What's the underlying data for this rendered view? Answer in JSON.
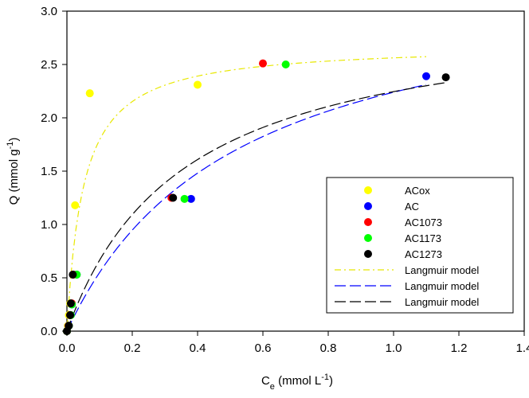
{
  "chart_data": {
    "type": "scatter",
    "xlabel": {
      "main": "C",
      "sub": "e",
      "rest": " (mmol L",
      "sup": "-1",
      "close": ")"
    },
    "ylabel": {
      "main": "Q (mmol g",
      "sup": "-1",
      "close": ")"
    },
    "xlim": [
      0,
      1.4
    ],
    "ylim": [
      0,
      3.0
    ],
    "xticks": [
      0.0,
      0.2,
      0.4,
      0.6,
      0.8,
      1.0,
      1.2,
      1.4
    ],
    "yticks": [
      0.0,
      0.5,
      1.0,
      1.5,
      2.0,
      2.5,
      3.0
    ],
    "xtick_labels": [
      "0.0",
      "0.2",
      "0.4",
      "0.6",
      "0.8",
      "1.0",
      "1.2",
      "1.4"
    ],
    "ytick_labels": [
      "0.0",
      "0.5",
      "1.0",
      "1.5",
      "2.0",
      "2.5",
      "3.0"
    ],
    "grid": false,
    "legend_position": "lower-right",
    "series": [
      {
        "name": "ACox",
        "kind": "scatter",
        "color": "#ffff00",
        "points": [
          [
            0.0,
            0.0
          ],
          [
            0.003,
            0.05
          ],
          [
            0.006,
            0.15
          ],
          [
            0.01,
            0.26
          ],
          [
            0.025,
            1.18
          ],
          [
            0.07,
            2.23
          ],
          [
            0.4,
            2.31
          ]
        ]
      },
      {
        "name": "AC",
        "kind": "scatter",
        "color": "#0000ff",
        "points": [
          [
            0.0,
            0.0
          ],
          [
            0.005,
            0.05
          ],
          [
            0.01,
            0.15
          ],
          [
            0.015,
            0.25
          ],
          [
            0.03,
            0.53
          ],
          [
            0.38,
            1.24
          ],
          [
            1.1,
            2.39
          ]
        ]
      },
      {
        "name": "AC1073",
        "kind": "scatter",
        "color": "#ff0000",
        "points": [
          [
            0.0,
            0.0
          ],
          [
            0.005,
            0.05
          ],
          [
            0.01,
            0.15
          ],
          [
            0.015,
            0.26
          ],
          [
            0.02,
            0.53
          ],
          [
            0.32,
            1.25
          ],
          [
            0.6,
            2.51
          ]
        ]
      },
      {
        "name": "AC1173",
        "kind": "scatter",
        "color": "#00ff00",
        "points": [
          [
            0.0,
            0.0
          ],
          [
            0.006,
            0.05
          ],
          [
            0.012,
            0.15
          ],
          [
            0.015,
            0.25
          ],
          [
            0.03,
            0.53
          ],
          [
            0.36,
            1.24
          ],
          [
            0.67,
            2.5
          ]
        ]
      },
      {
        "name": "AC1273",
        "kind": "scatter",
        "color": "#000000",
        "points": [
          [
            0.0,
            0.0
          ],
          [
            0.006,
            0.05
          ],
          [
            0.01,
            0.15
          ],
          [
            0.012,
            0.26
          ],
          [
            0.018,
            0.53
          ],
          [
            0.325,
            1.25
          ],
          [
            1.16,
            2.38
          ]
        ]
      },
      {
        "name": "Langmuir model",
        "kind": "line",
        "color": "#e8e800",
        "dash": "8 4 2 4",
        "qmax": 2.69,
        "K": 20,
        "x_range": [
          0,
          1.1
        ]
      },
      {
        "name": "Langmuir model",
        "kind": "line",
        "color": "#0000ff",
        "dash": "14 5",
        "qmax": 3.4,
        "K": 1.93,
        "x_range": [
          0,
          1.1
        ]
      },
      {
        "name": "Langmuir model",
        "kind": "line",
        "color": "#000000",
        "dash": "14 5",
        "qmax": 3.05,
        "K": 2.79,
        "x_range": [
          0,
          1.16
        ]
      }
    ]
  }
}
